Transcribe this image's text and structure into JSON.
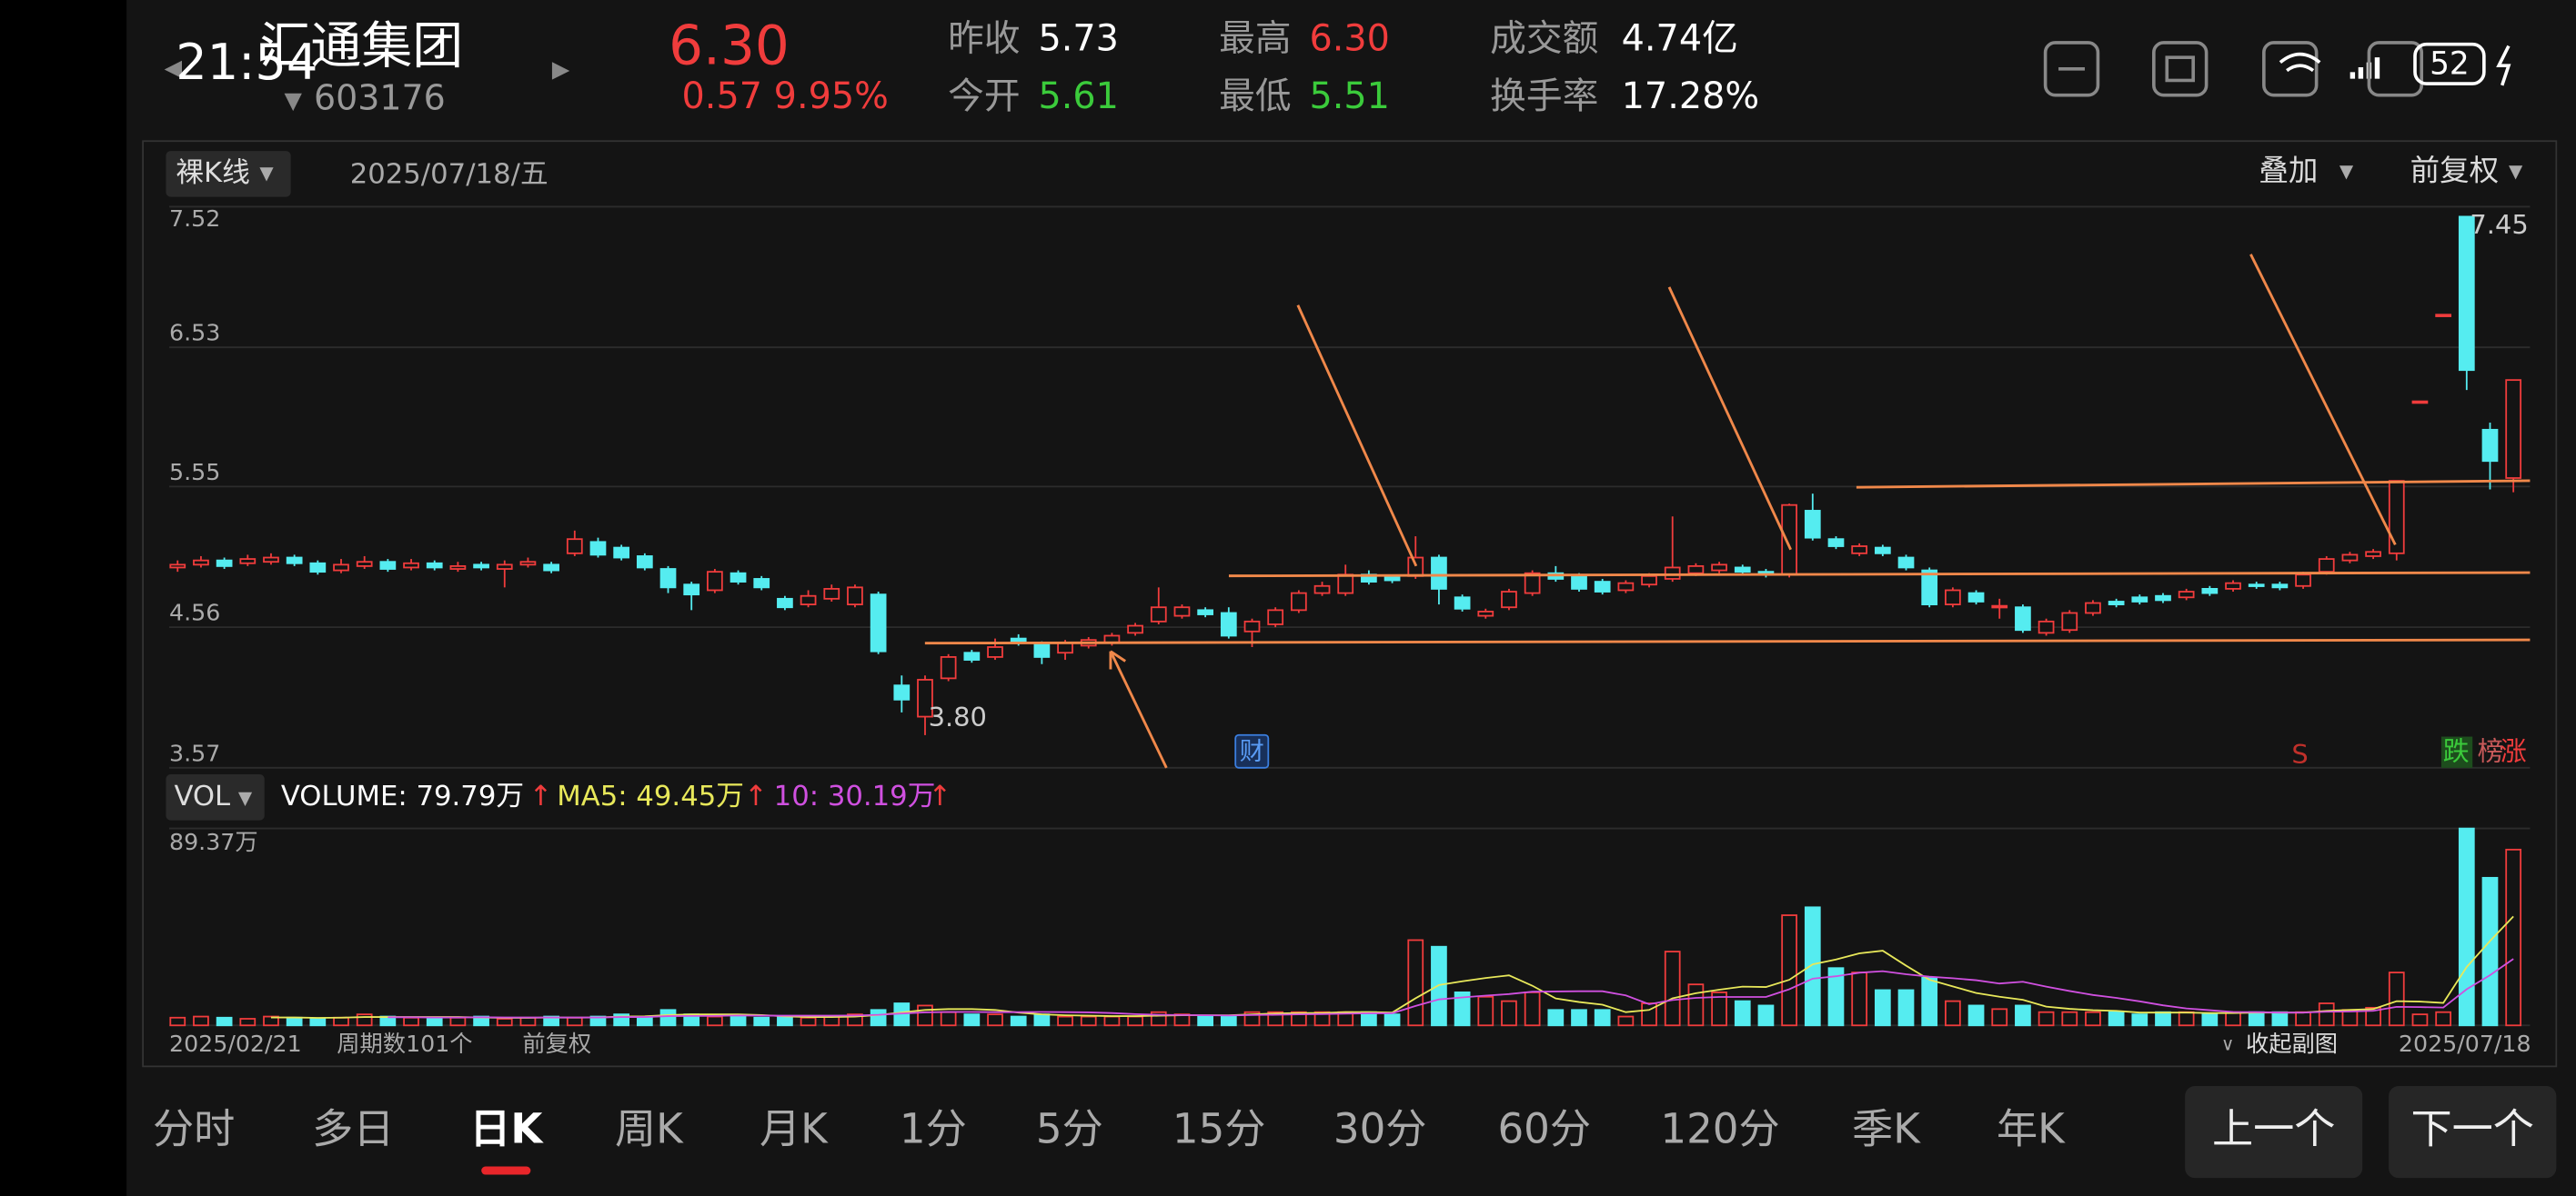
{
  "status": {
    "time": "21:54",
    "battery": "52"
  },
  "stock": {
    "name": "汇通集团",
    "code": "603176",
    "price": "6.30",
    "change": "0.57",
    "change_pct": "9.95%"
  },
  "quote": [
    {
      "label": "昨收",
      "value": "5.73"
    },
    {
      "label": "今开",
      "value": "5.61"
    },
    {
      "label": "最高",
      "value": "6.30"
    },
    {
      "label": "最低",
      "value": "5.51"
    },
    {
      "label": "成交额",
      "value": "4.74亿"
    },
    {
      "label": "换手率",
      "value": "17.28%"
    }
  ],
  "toolbar": {
    "kline_mode": "裸K线",
    "date": "2025/07/18/五",
    "overlay": "叠加",
    "adjust": "前复权"
  },
  "chart_data": {
    "type": "candlestick",
    "up_color": "#f03c3c",
    "down_color": "#55ecf0",
    "ylim": [
      3.57,
      7.52
    ],
    "yticks": [
      7.52,
      6.53,
      5.55,
      4.56,
      3.57
    ],
    "grid": true,
    "annotations": [
      {
        "value": 7.45,
        "label": "7.45"
      },
      {
        "value": 3.8,
        "label": "3.80"
      }
    ],
    "open": [
      4.98,
      5.0,
      5.03,
      5.01,
      5.02,
      5.05,
      5.01,
      4.96,
      4.99,
      5.02,
      4.98,
      5.01,
      4.97,
      5.0,
      4.97,
      5.0,
      5.0,
      5.08,
      5.16,
      5.12,
      5.06,
      4.97,
      4.86,
      4.82,
      4.94,
      4.9,
      4.76,
      4.72,
      4.76,
      4.72,
      4.79,
      4.15,
      3.93,
      4.2,
      4.38,
      4.35,
      4.48,
      4.44,
      4.38,
      4.43,
      4.45,
      4.52,
      4.6,
      4.64,
      4.68,
      4.66,
      4.53,
      4.58,
      4.68,
      4.8,
      4.8,
      4.93,
      4.91,
      4.92,
      5.05,
      4.77,
      4.64,
      4.7,
      4.8,
      4.94,
      4.92,
      4.88,
      4.82,
      4.86,
      4.9,
      4.94,
      4.96,
      4.98,
      4.95,
      4.93,
      5.38,
      5.18,
      5.08,
      5.12,
      5.05,
      4.96,
      4.72,
      4.8,
      4.7,
      4.7,
      4.52,
      4.54,
      4.66,
      4.74,
      4.77,
      4.78,
      4.77,
      4.83,
      4.83,
      4.86,
      4.86,
      4.85,
      4.95,
      5.03,
      5.06,
      5.08,
      6.15,
      6.76,
      7.45,
      5.95,
      5.61
    ],
    "close": [
      5.0,
      5.03,
      4.99,
      5.04,
      5.05,
      5.01,
      4.95,
      5.0,
      5.02,
      4.97,
      5.01,
      4.98,
      4.99,
      4.98,
      5.0,
      5.02,
      4.96,
      5.18,
      5.07,
      5.05,
      4.98,
      4.84,
      4.79,
      4.95,
      4.88,
      4.84,
      4.7,
      4.78,
      4.83,
      4.84,
      4.39,
      4.05,
      4.19,
      4.35,
      4.33,
      4.42,
      4.45,
      4.35,
      4.45,
      4.47,
      4.5,
      4.57,
      4.7,
      4.7,
      4.65,
      4.5,
      4.6,
      4.68,
      4.8,
      4.85,
      4.93,
      4.88,
      4.89,
      5.05,
      4.83,
      4.69,
      4.67,
      4.81,
      4.94,
      4.9,
      4.83,
      4.81,
      4.87,
      4.92,
      4.98,
      4.99,
      5.0,
      4.95,
      4.93,
      5.42,
      5.19,
      5.13,
      5.13,
      5.08,
      4.98,
      4.72,
      4.82,
      4.74,
      4.71,
      4.54,
      4.6,
      4.66,
      4.73,
      4.72,
      4.74,
      4.75,
      4.81,
      4.8,
      4.87,
      4.85,
      4.84,
      4.93,
      5.04,
      5.07,
      5.09,
      5.59,
      6.15,
      6.76,
      6.37,
      5.73,
      6.3
    ],
    "high": [
      5.03,
      5.06,
      5.05,
      5.07,
      5.08,
      5.07,
      5.03,
      5.04,
      5.06,
      5.04,
      5.04,
      5.03,
      5.02,
      5.02,
      5.03,
      5.05,
      5.02,
      5.24,
      5.19,
      5.14,
      5.08,
      4.99,
      4.88,
      4.97,
      4.96,
      4.92,
      4.78,
      4.82,
      4.86,
      4.86,
      4.81,
      4.22,
      4.22,
      4.37,
      4.4,
      4.48,
      4.51,
      4.46,
      4.47,
      4.49,
      4.52,
      4.59,
      4.84,
      4.72,
      4.7,
      4.7,
      4.62,
      4.7,
      4.82,
      4.88,
      5.0,
      4.96,
      4.93,
      5.2,
      5.07,
      4.79,
      4.69,
      4.83,
      4.96,
      4.99,
      4.94,
      4.9,
      4.89,
      4.94,
      5.34,
      5.01,
      5.02,
      5.0,
      4.97,
      5.43,
      5.5,
      5.2,
      5.15,
      5.14,
      5.07,
      4.98,
      4.84,
      4.82,
      4.76,
      4.72,
      4.62,
      4.68,
      4.75,
      4.76,
      4.79,
      4.8,
      4.83,
      4.85,
      4.89,
      4.88,
      4.88,
      4.95,
      5.06,
      5.09,
      5.11,
      5.59,
      6.15,
      6.76,
      7.45,
      6.0,
      6.3
    ],
    "low": [
      4.95,
      4.98,
      4.97,
      4.99,
      5.0,
      4.99,
      4.93,
      4.94,
      4.97,
      4.95,
      4.96,
      4.96,
      4.95,
      4.96,
      4.84,
      4.98,
      4.94,
      5.06,
      5.05,
      5.03,
      4.96,
      4.8,
      4.68,
      4.8,
      4.86,
      4.82,
      4.68,
      4.7,
      4.74,
      4.7,
      4.37,
      3.96,
      3.8,
      4.18,
      4.31,
      4.33,
      4.43,
      4.3,
      4.33,
      4.41,
      4.43,
      4.5,
      4.58,
      4.62,
      4.63,
      4.48,
      4.42,
      4.56,
      4.66,
      4.78,
      4.78,
      4.86,
      4.87,
      4.9,
      4.72,
      4.67,
      4.62,
      4.68,
      4.78,
      4.88,
      4.81,
      4.79,
      4.8,
      4.84,
      4.88,
      4.92,
      4.94,
      4.93,
      4.91,
      4.91,
      5.17,
      5.11,
      5.06,
      5.06,
      4.96,
      4.7,
      4.7,
      4.72,
      4.62,
      4.52,
      4.5,
      4.52,
      4.64,
      4.7,
      4.72,
      4.73,
      4.75,
      4.78,
      4.81,
      4.83,
      4.82,
      4.83,
      4.93,
      5.01,
      5.04,
      5.03,
      6.15,
      6.76,
      6.23,
      5.53,
      5.51
    ],
    "volume": {
      "indicator": "VOL",
      "ylim": [
        0,
        89.37
      ],
      "yticks": [
        {
          "value": 89.37,
          "label": "89.37万"
        }
      ],
      "legend": {
        "volume": "VOLUME: 79.79万",
        "ma5": "MA5: 49.45万",
        "ma10": "10: 30.19万",
        "arrow": "↑"
      },
      "ma5_color": "#e8e85a",
      "ma10_color": "#d050e0",
      "values": [
        3.5,
        4,
        3.5,
        3,
        4,
        3.5,
        3,
        3.5,
        5,
        4,
        3.5,
        3,
        3.5,
        4,
        3,
        3.5,
        4,
        3.5,
        4,
        5,
        4,
        7,
        5,
        4,
        4,
        3.5,
        4,
        3.5,
        4,
        5,
        7,
        10,
        9,
        6,
        5,
        5,
        4,
        5,
        4,
        4,
        4,
        4,
        6,
        5,
        4,
        4,
        6,
        6,
        6,
        6,
        6,
        6,
        5,
        38.7,
        35.7,
        15,
        13,
        11,
        15,
        7,
        7,
        7,
        4,
        10,
        33.5,
        18.6,
        15,
        11,
        9,
        50,
        53.6,
        26,
        24,
        16,
        16,
        21.6,
        11,
        9,
        7.4,
        9,
        6,
        6,
        6,
        6,
        5,
        6,
        6,
        5,
        6,
        6,
        6,
        6,
        10,
        7,
        8,
        24,
        5,
        6,
        89.37,
        67,
        79.79
      ],
      "ma5": [
        null,
        null,
        null,
        null,
        3.6,
        3.6,
        3.4,
        3.5,
        3.8,
        3.8,
        3.8,
        3.8,
        3.8,
        3.6,
        3.4,
        3.4,
        3.6,
        3.5,
        3.6,
        4,
        4.1,
        4.7,
        5,
        5,
        5,
        4.7,
        4.1,
        3.8,
        3.8,
        4,
        4.7,
        5.9,
        7,
        7.4,
        7.4,
        7,
        5.8,
        5,
        4.6,
        4.4,
        4.2,
        4.2,
        4.4,
        4.6,
        4.6,
        4.6,
        5,
        5.4,
        5.6,
        5.6,
        6,
        6,
        5.8,
        12.3,
        18.3,
        20,
        21.5,
        22.7,
        18,
        12.2,
        10.6,
        9.4,
        6,
        7,
        12.3,
        14.6,
        16.2,
        17.6,
        17.4,
        20.7,
        27.7,
        29.9,
        32.7,
        33.9,
        27.1,
        20.7,
        17.7,
        14.7,
        13,
        11.6,
        8.5,
        7.5,
        6.9,
        6.6,
        5.8,
        5.8,
        5.8,
        5.6,
        5.6,
        5.8,
        5.8,
        5.8,
        6.6,
        7,
        7.4,
        11,
        10.8,
        10.2,
        26.5,
        38.3,
        49.45
      ],
      "ma10": [
        null,
        null,
        null,
        null,
        null,
        null,
        null,
        null,
        null,
        3.7,
        3.7,
        3.6,
        3.6,
        3.7,
        3.6,
        3.6,
        3.6,
        3.6,
        3.6,
        3.8,
        3.8,
        4.2,
        4.3,
        4.3,
        4.5,
        4.4,
        4.4,
        4.4,
        4.4,
        4.5,
        4.8,
        5.4,
        5.9,
        6.1,
        6.1,
        6,
        6,
        6.1,
        6,
        5.9,
        5.6,
        5.1,
        4.8,
        4.7,
        4.6,
        4.5,
        4.7,
        4.8,
        5,
        5.1,
        5.3,
        5.5,
        5.5,
        8.8,
        11.8,
        12.7,
        13.5,
        14.2,
        15.3,
        15.4,
        15.5,
        15.5,
        13.6,
        9.6,
        11.5,
        12.5,
        12.9,
        12.9,
        12.9,
        16.4,
        21.2,
        22.3,
        23.9,
        24.6,
        23.2,
        22.1,
        21.4,
        20.5,
        19,
        19.8,
        17.6,
        15.6,
        13.8,
        12.5,
        10.9,
        9.1,
        7.7,
        6.9,
        6.1,
        6,
        5.8,
        5.8,
        6.2,
        6.3,
        6.6,
        8.4,
        8.3,
        8.1,
        16.4,
        22.8,
        30.19
      ]
    }
  },
  "markers": {
    "finance": "财",
    "s": "S",
    "fall": "跌",
    "rank": "榜",
    "rise": "涨"
  },
  "footer": {
    "start": "2025/02/21",
    "periods": "周期数101个",
    "adjust": "前复权",
    "collapse": "收起副图",
    "end": "2025/07/18"
  },
  "tabs": [
    "分时",
    "多日",
    "日K",
    "周K",
    "月K",
    "1分",
    "5分",
    "15分",
    "30分",
    "60分",
    "120分",
    "季K",
    "年K"
  ],
  "selected_tab": 2,
  "buttons": [
    "上一个",
    "下一个"
  ]
}
